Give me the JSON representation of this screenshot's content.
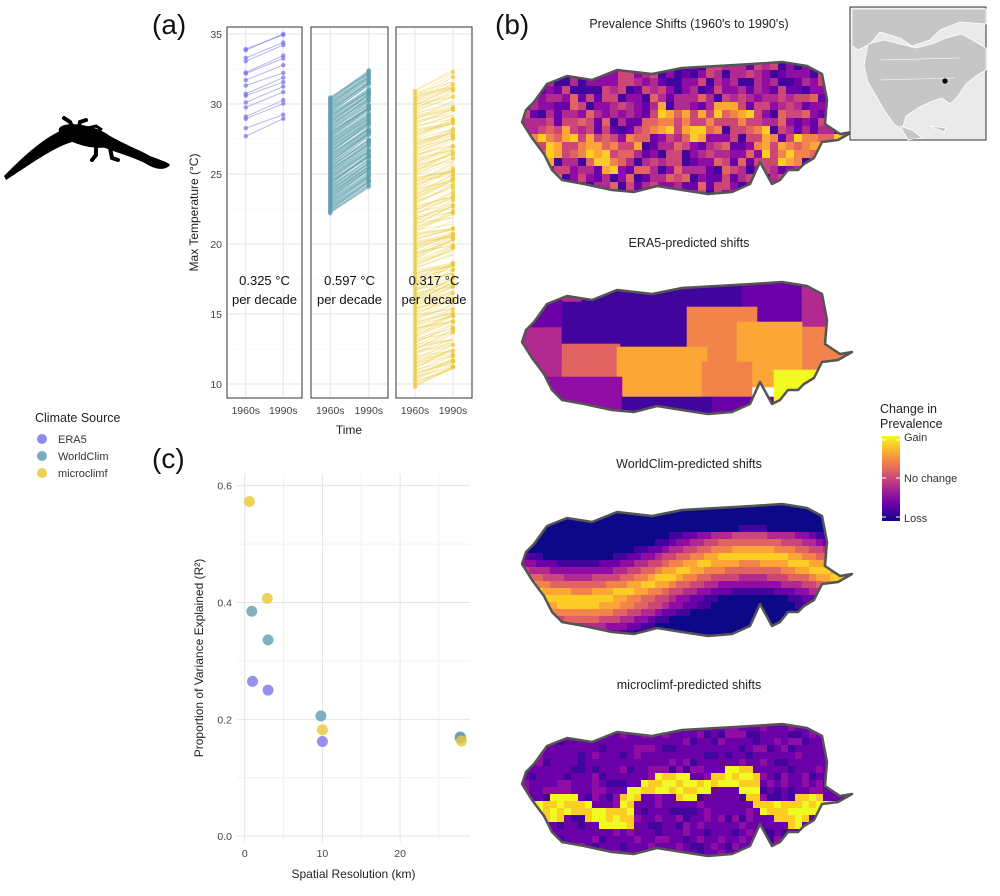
{
  "panels": {
    "a_label": "(a)",
    "b_label": "(b)",
    "c_label": "(c)"
  },
  "legend": {
    "title": "Climate Source",
    "items": [
      {
        "name": "ERA5",
        "color": "#7b77ea"
      },
      {
        "name": "WorldClim",
        "color": "#5f9eb0"
      },
      {
        "name": "microclimf",
        "color": "#e9c935"
      }
    ]
  },
  "colorbar": {
    "title_line1": "Change in",
    "title_line2": "Prevalence",
    "labels": [
      "Gain",
      "No change",
      "Loss"
    ],
    "colors": [
      "#f0f921",
      "#fca636",
      "#e16462",
      "#b12a90",
      "#6a00a8",
      "#0d0887"
    ]
  },
  "maps": {
    "titles": [
      "Prevalence Shifts (1960's to 1990's)",
      "ERA5-predicted shifts",
      "WorldClim-predicted shifts",
      "microclimf-predicted shifts"
    ]
  },
  "inset": {
    "name": "north-america-locator"
  },
  "chart_data": [
    {
      "type": "line",
      "panel": "(a)",
      "x_categories": [
        "1960s",
        "1990s"
      ],
      "xlabel": "Time",
      "ylabel": "Max Temperature (°C)",
      "ylim": [
        9,
        35.5
      ],
      "yticks": [
        10,
        15,
        20,
        25,
        30,
        35
      ],
      "grid": true,
      "facets": [
        {
          "series": "ERA5",
          "color": "#7b77ea",
          "range_1960s": [
            28,
            34
          ],
          "range_1990s": [
            29,
            35
          ],
          "trend_label": "0.325 °C",
          "trend_unit": "per decade"
        },
        {
          "series": "WorldClim",
          "color": "#5f9eb0",
          "range_1960s": [
            22.2,
            30.5
          ],
          "range_1990s": [
            24,
            32.4
          ],
          "trend_label": "0.597 °C",
          "trend_unit": "per decade"
        },
        {
          "series": "microclimf",
          "color": "#e9c935",
          "range_1960s": [
            9.8,
            31
          ],
          "range_1990s": [
            10.5,
            33
          ],
          "trend_label": "0.317 °C",
          "trend_unit": "per decade"
        }
      ]
    },
    {
      "type": "scatter",
      "panel": "(c)",
      "xlabel": "Spatial Resolution (km)",
      "ylabel": "Proportion of Variance Explained (R²)",
      "xlim": [
        -1,
        29
      ],
      "ylim": [
        -0.01,
        0.62
      ],
      "xticks": [
        0,
        10,
        20
      ],
      "yticks": [
        0.0,
        0.2,
        0.4,
        0.6
      ],
      "grid": true,
      "series": [
        {
          "name": "ERA5",
          "color": "#7b77ea",
          "points": [
            [
              1,
              0.265
            ],
            [
              3,
              0.25
            ],
            [
              10,
              0.162
            ],
            [
              27.75,
              0.168
            ]
          ]
        },
        {
          "name": "WorldClim",
          "color": "#5f9eb0",
          "points": [
            [
              0.9,
              0.385
            ],
            [
              3,
              0.336
            ],
            [
              9.8,
              0.206
            ],
            [
              27.75,
              0.17
            ]
          ]
        },
        {
          "name": "microclimf",
          "color": "#e9c935",
          "points": [
            [
              0.6,
              0.573
            ],
            [
              2.9,
              0.407
            ],
            [
              10,
              0.182
            ],
            [
              27.9,
              0.163
            ]
          ]
        }
      ]
    }
  ]
}
